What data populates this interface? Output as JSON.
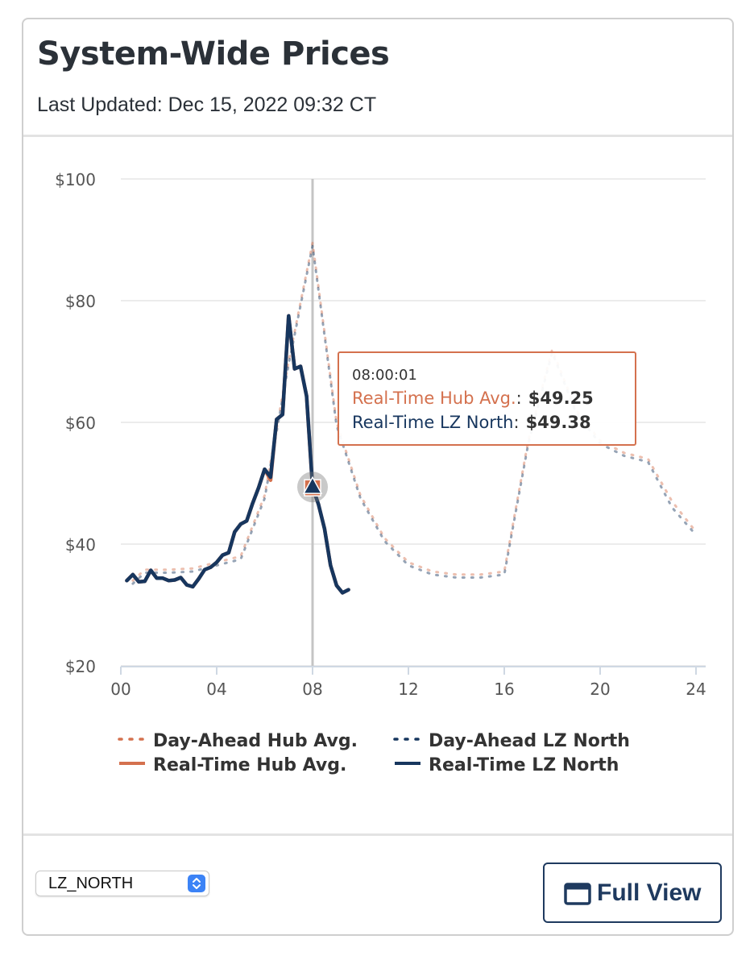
{
  "header": {
    "title": "System-Wide Prices",
    "last_updated": "Last Updated: Dec 15, 2022 09:32 CT"
  },
  "colors": {
    "hub": "#d4714e",
    "lz_north": "#17365e",
    "grid": "#e6e6e6",
    "cursor": "#c4c4c4",
    "axis_text": "#555555",
    "button_border": "#1f3a5f"
  },
  "chart_data": {
    "type": "line",
    "title": "System-Wide Prices",
    "xlabel": "",
    "ylabel": "",
    "xlim": [
      0,
      24
    ],
    "ylim": [
      20,
      100
    ],
    "x_ticks": [
      0,
      4,
      8,
      12,
      16,
      20,
      24
    ],
    "x_tick_labels": [
      "00",
      "04",
      "08",
      "12",
      "16",
      "20",
      "24"
    ],
    "y_ticks": [
      20,
      40,
      60,
      80,
      100
    ],
    "y_tick_labels": [
      "$20",
      "$40",
      "$60",
      "$80",
      "$100"
    ],
    "grid": true,
    "legend_position": "bottom",
    "series": [
      {
        "name": "Day-Ahead Hub Avg.",
        "style": "dotted",
        "color": "#d4714e",
        "x": [
          0.5,
          1,
          2,
          3,
          4,
          5,
          6,
          7,
          8,
          9,
          10,
          11,
          12,
          13,
          14,
          15,
          16,
          17,
          18,
          19,
          20,
          21,
          22,
          23,
          24
        ],
        "y": [
          34,
          35.8,
          35.8,
          36,
          37,
          38,
          48,
          70,
          89.5,
          60,
          48,
          41,
          37,
          35.5,
          35,
          35,
          35.5,
          57,
          72,
          62,
          57,
          55,
          54,
          47,
          42
        ]
      },
      {
        "name": "Day-Ahead LZ North",
        "style": "dotted",
        "color": "#17365e",
        "x": [
          0.5,
          1,
          2,
          3,
          4,
          5,
          6,
          7,
          8,
          9,
          10,
          11,
          12,
          13,
          14,
          15,
          16,
          17,
          18,
          19,
          20,
          21,
          22,
          23,
          24
        ],
        "y": [
          33.5,
          35.3,
          35.3,
          35.5,
          36.5,
          37.5,
          47.5,
          69.5,
          89,
          59.5,
          47.5,
          40.5,
          36.5,
          35,
          34.5,
          34.5,
          35,
          56.5,
          71.5,
          61.5,
          56.5,
          54.5,
          53.5,
          46,
          41.5
        ]
      },
      {
        "name": "Real-Time Hub Avg.",
        "style": "solid",
        "color": "#d4714e",
        "x": [
          0.25,
          0.5,
          0.75,
          1,
          1.25,
          1.5,
          1.75,
          2,
          2.25,
          2.5,
          2.75,
          3,
          3.25,
          3.5,
          3.75,
          4,
          4.25,
          4.5,
          4.75,
          5,
          5.25,
          5.5,
          5.75,
          6,
          6.25,
          6.5,
          6.75,
          7,
          7.25,
          7.5,
          7.75,
          8,
          8.25,
          8.5,
          8.75,
          9,
          9.25,
          9.5
        ],
        "y": [
          34,
          35,
          33.8,
          33.9,
          35.7,
          34.4,
          34.4,
          34,
          34.1,
          34.5,
          33.3,
          33,
          34.3,
          35.8,
          36.2,
          37,
          38.2,
          38.6,
          42,
          43.3,
          43.8,
          46.7,
          49.3,
          52.3,
          50.5,
          60.5,
          61.3,
          77.5,
          68.8,
          69.2,
          64.3,
          49.3,
          46.5,
          42.5,
          36.5,
          33.2,
          32,
          32.5
        ]
      },
      {
        "name": "Real-Time LZ North",
        "style": "solid",
        "color": "#17365e",
        "x": [
          0.25,
          0.5,
          0.75,
          1,
          1.25,
          1.5,
          1.75,
          2,
          2.25,
          2.5,
          2.75,
          3,
          3.25,
          3.5,
          3.75,
          4,
          4.25,
          4.5,
          4.75,
          5,
          5.25,
          5.5,
          5.75,
          6,
          6.25,
          6.5,
          6.75,
          7,
          7.25,
          7.5,
          7.75,
          8,
          8.25,
          8.5,
          8.75,
          9,
          9.25,
          9.5
        ],
        "y": [
          34,
          35,
          33.8,
          33.9,
          35.7,
          34.4,
          34.4,
          34,
          34.1,
          34.5,
          33.3,
          33,
          34.3,
          35.8,
          36.2,
          37,
          38.2,
          38.6,
          42,
          43.3,
          43.8,
          46.7,
          49.3,
          52.3,
          51,
          60.5,
          61.3,
          77.5,
          68.8,
          69.2,
          64.3,
          49.4,
          46.5,
          42.5,
          36.5,
          33.2,
          32,
          32.5
        ]
      }
    ],
    "cursor": {
      "x": 8,
      "markers": [
        {
          "series": "Real-Time Hub Avg.",
          "shape": "square",
          "value": 49.25
        },
        {
          "series": "Real-Time LZ North",
          "shape": "triangle",
          "value": 49.38
        }
      ]
    },
    "tooltip": {
      "time": "08:00:01",
      "rows": [
        {
          "label": "Real-Time Hub Avg.",
          "separator": ":",
          "value": "$49.25",
          "color": "#d4714e"
        },
        {
          "label": "Real-Time LZ North",
          "separator": ":",
          "value": "$49.38",
          "color": "#17365e"
        }
      ]
    }
  },
  "selector": {
    "value": "LZ_NORTH",
    "icon": "updown-chevron-icon"
  },
  "actions": {
    "full_view_label": "Full View",
    "full_view_icon": "window-icon"
  }
}
